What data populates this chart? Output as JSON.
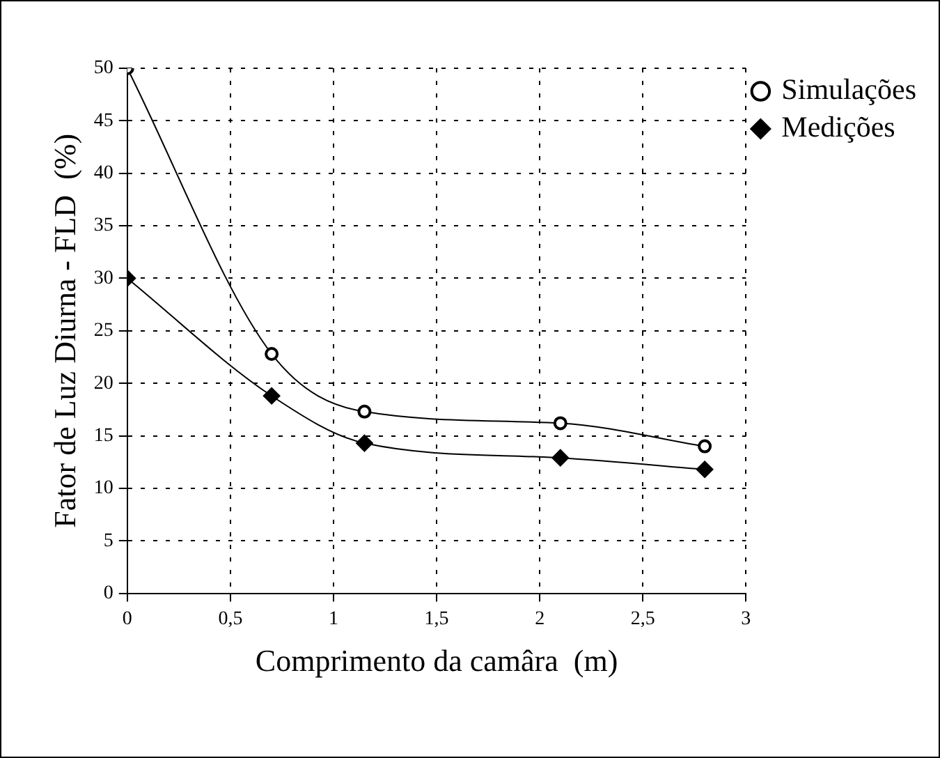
{
  "chart_data": {
    "type": "line",
    "xlabel": "Comprimento da camâra  (m)",
    "ylabel": "Fator de Luz Diurna - FLD  (%)",
    "x": [
      0,
      0.7,
      1.15,
      2.1,
      2.8
    ],
    "series": [
      {
        "name": "Simulações",
        "color": "#000000",
        "marker": "circle",
        "values": [
          50,
          22.8,
          17.3,
          16.2,
          14
        ]
      },
      {
        "name": "Medições",
        "color": "#000000",
        "marker": "diamond",
        "values": [
          30,
          18.8,
          14.3,
          12.9,
          11.8
        ]
      }
    ],
    "xlim": [
      0,
      3
    ],
    "xticks": [
      0,
      {
        "value": 0.5,
        "label": "0,5"
      },
      1,
      {
        "value": 1.5,
        "label": "1,5"
      },
      2,
      {
        "value": 2.5,
        "label": "2,5"
      },
      3
    ],
    "ylim": [
      0,
      50
    ],
    "yticks": [
      0,
      5,
      10,
      15,
      20,
      25,
      30,
      35,
      40,
      45,
      50
    ],
    "grid": true,
    "legend": "top right",
    "line_style": "solid"
  }
}
